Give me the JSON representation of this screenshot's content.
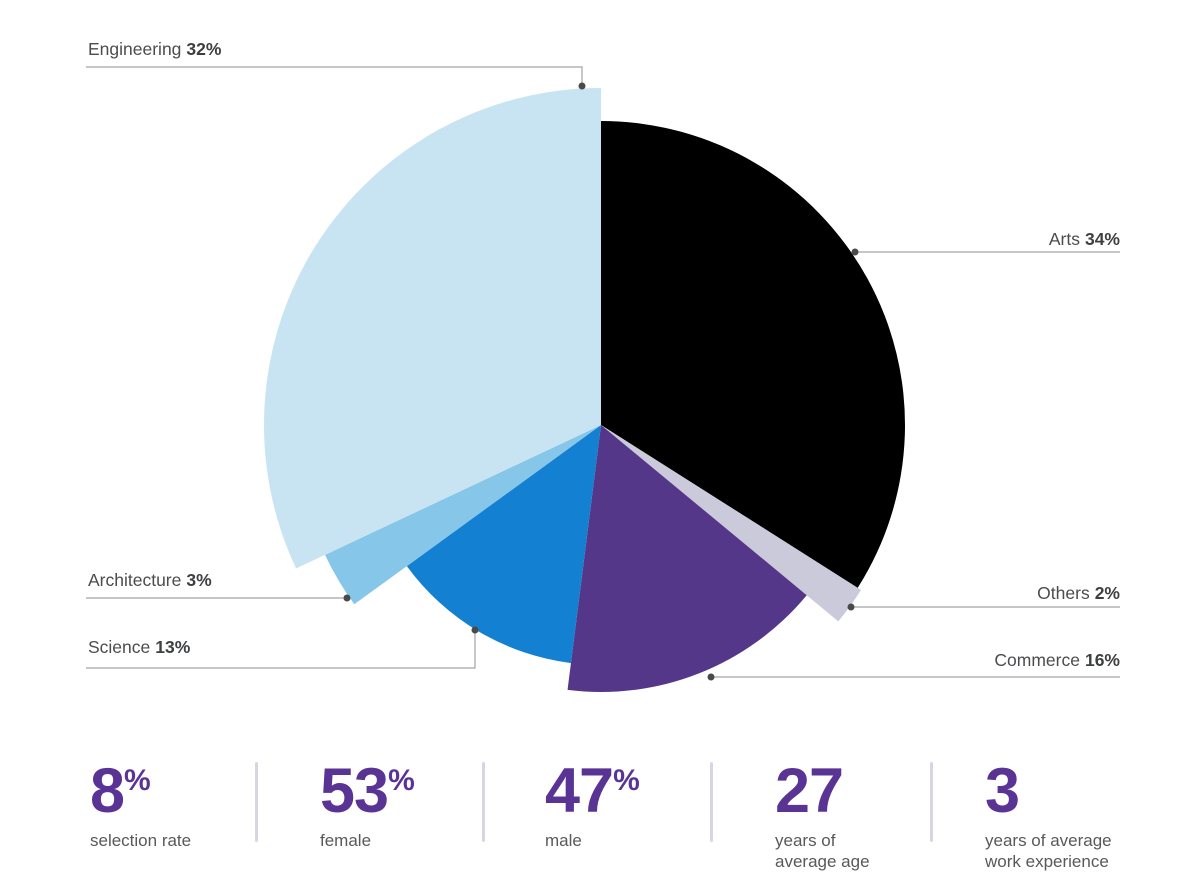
{
  "chart_data": {
    "type": "pie",
    "title": "",
    "start_angle_deg": 0,
    "direction": "clockwise",
    "center": [
      601,
      425
    ],
    "slices": [
      {
        "label": "Arts",
        "value": 34,
        "pct_text": "34%",
        "color": "#000000",
        "radius": 304
      },
      {
        "label": "Others",
        "value": 2,
        "pct_text": "2%",
        "color": "#cbcadb",
        "radius": 308
      },
      {
        "label": "Commerce",
        "value": 16,
        "pct_text": "16%",
        "color": "#553789",
        "radius": 267
      },
      {
        "label": "Science",
        "value": 13,
        "pct_text": "13%",
        "color": "#1480d2",
        "radius": 240
      },
      {
        "label": "Architecture",
        "value": 3,
        "pct_text": "3%",
        "color": "#86c6e8",
        "radius": 305
      },
      {
        "label": "Engineering",
        "value": 32,
        "pct_text": "32%",
        "color": "#c8e4f2",
        "radius": 337
      }
    ]
  },
  "stats": {
    "items": [
      {
        "value": "8",
        "suffix": "%",
        "caption": "selection rate"
      },
      {
        "value": "53",
        "suffix": "%",
        "caption": "female"
      },
      {
        "value": "47",
        "suffix": "%",
        "caption": "male"
      },
      {
        "value": "27",
        "suffix": "",
        "caption": [
          "years of",
          "average age"
        ]
      },
      {
        "value": "3",
        "suffix": "",
        "caption": [
          "years of average",
          "work experience"
        ]
      }
    ]
  },
  "colors": {
    "background": "#ffffff",
    "stat_number": "#5a3494",
    "label_text": "#4b4c4e",
    "label_pct": "#3e3f41",
    "leader_line": "#a3a3a3",
    "leader_dot": "#4a4a4a",
    "divider": "#d8d5e2"
  }
}
